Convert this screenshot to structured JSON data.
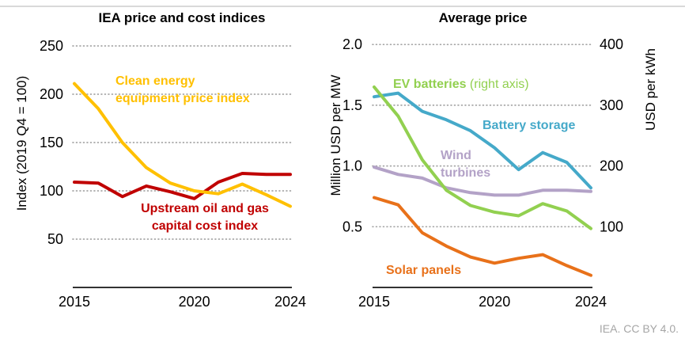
{
  "page": {
    "footer": "IEA. CC BY 4.0.",
    "colors": {
      "top_border": "#D9D9D9",
      "gridline": "#A6A6A6",
      "axis": "#333333",
      "footer_text": "#A6A6A6"
    }
  },
  "chart_data": [
    {
      "type": "line",
      "title": "IEA price and cost indices",
      "ylabel": "Index (2019 Q4 = 100)",
      "grid": "dotted horizontal",
      "x": [
        2015,
        2016,
        2017,
        2018,
        2019,
        2020,
        2021,
        2022,
        2023,
        2024
      ],
      "x_ticks": [
        "2015",
        "2020",
        "2024"
      ],
      "y_ticks": [
        "250",
        "200",
        "150",
        "100",
        "50"
      ],
      "ylim": [
        0,
        265
      ],
      "series": [
        {
          "name": "Upstream oil and gas capital cost index",
          "color": "#C00000",
          "axis": "left",
          "values": [
            109,
            108,
            94,
            105,
            99,
            92,
            109,
            118,
            117,
            117
          ]
        },
        {
          "name": "Clean energy equipment price index",
          "color": "#FFC000",
          "axis": "left",
          "values": [
            211,
            185,
            150,
            124,
            108,
            100,
            97,
            107,
            96,
            84
          ]
        }
      ],
      "annotations": [
        {
          "lines": [
            "Clean energy",
            "equipment price index"
          ],
          "color": "#FFC000"
        },
        {
          "lines": [
            "Upstream oil and gas",
            "capital cost index"
          ],
          "color": "#C00000"
        }
      ]
    },
    {
      "type": "line",
      "title": "Average price",
      "ylabel_left": "Million USD per MW",
      "ylabel_right": "USD per kWh",
      "grid": "dotted horizontal",
      "x": [
        2015,
        2016,
        2017,
        2018,
        2019,
        2020,
        2021,
        2022,
        2023,
        2024
      ],
      "x_ticks": [
        "2015",
        "2020",
        "2024"
      ],
      "y_ticks": [
        "2.0",
        "1.5",
        "1.0",
        "0.5"
      ],
      "y_ticks_right": [
        "400",
        "300",
        "200",
        "100"
      ],
      "ylim_left": [
        0,
        2.1
      ],
      "ylim_right": [
        0,
        420
      ],
      "series": [
        {
          "name": "Solar panels",
          "color": "#E8711A",
          "axis": "left",
          "values": [
            0.74,
            0.68,
            0.45,
            0.34,
            0.25,
            0.2,
            0.24,
            0.27,
            0.18,
            0.1
          ]
        },
        {
          "name": "Wind turbines",
          "color": "#B3A2C7",
          "axis": "left",
          "values": [
            0.99,
            0.93,
            0.9,
            0.82,
            0.78,
            0.76,
            0.76,
            0.8,
            0.8,
            0.79
          ]
        },
        {
          "name": "Battery storage",
          "color": "#45A9C9",
          "axis": "left",
          "values": [
            1.57,
            1.6,
            1.45,
            1.38,
            1.29,
            1.15,
            0.97,
            1.11,
            1.03,
            0.82
          ]
        },
        {
          "name": "EV batteries",
          "color": "#92D050",
          "axis": "right",
          "values": [
            330,
            282,
            210,
            160,
            135,
            124,
            118,
            138,
            126,
            97
          ]
        }
      ],
      "annotations": [
        {
          "bold": "EV batteries",
          "rest": " (right axis)",
          "color": "#92D050"
        },
        {
          "text": "Battery storage",
          "color": "#45A9C9"
        },
        {
          "lines": [
            "Wind",
            "turbines"
          ],
          "color": "#B3A2C7"
        },
        {
          "text": "Solar panels",
          "color": "#E8711A"
        }
      ]
    }
  ]
}
